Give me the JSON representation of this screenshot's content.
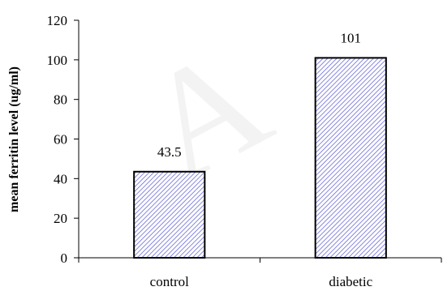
{
  "chart_data": {
    "type": "bar",
    "categories": [
      "control",
      "diabetic"
    ],
    "values": [
      43.5,
      101
    ],
    "data_labels": [
      "43.5",
      "101"
    ],
    "title": "",
    "xlabel": "",
    "ylabel": "mean ferritin level (ug/ml)",
    "ylim": [
      0,
      120
    ],
    "yticks": [
      "0",
      "20",
      "40",
      "60",
      "80",
      "100",
      "120"
    ],
    "grid": false,
    "legend": "none",
    "bar_fill": "hatched",
    "hatch_color": "#6a6ad8",
    "bar_outline_color": "#000000"
  },
  "watermark": {
    "text": "A"
  }
}
